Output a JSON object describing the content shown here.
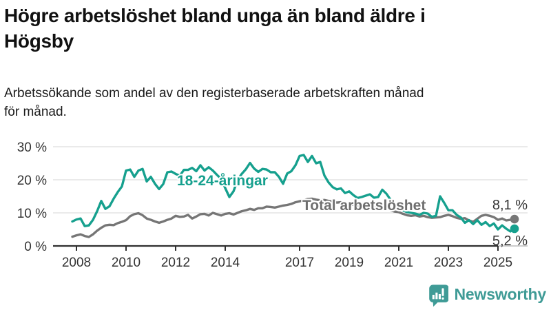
{
  "header": {
    "title_lines": [
      "Högre arbetslöshet bland unga än bland äldre i",
      "Högsby"
    ],
    "subtitle_lines": [
      "Arbetssökande som andel av den registerbaserade arbetskraften månad",
      "för månad."
    ]
  },
  "chart_data": {
    "type": "line",
    "title": "Högre arbetslöshet bland unga än bland äldre i Högsby",
    "subtitle": "Arbetssökande som andel av den registerbaserade arbetskraften månad för månad.",
    "unit": "%",
    "grid": "horizontal",
    "x_start": "2007-11",
    "x_step_months": 2,
    "x_end": "2025-09",
    "x_tick_labels": [
      "2008",
      "2010",
      "2012",
      "2014",
      "2017",
      "2019",
      "2021",
      "2023",
      "2025"
    ],
    "y_tick_labels": [
      "0 %",
      "10 %",
      "20 %",
      "30 %"
    ],
    "y_tick_values": [
      0,
      10,
      20,
      30
    ],
    "ylim": [
      0,
      30
    ],
    "axis_color": "#2f2f2f",
    "grid_color": "#dddddd",
    "tick_label_color": "#333333",
    "series": [
      {
        "name": "Total arbetslöshet",
        "color": "#767676",
        "end_label": "8,1 %",
        "end_value": 8.1,
        "values": [
          2.8,
          3.2,
          3.5,
          3.0,
          2.7,
          3.5,
          4.6,
          5.5,
          6.2,
          6.4,
          6.3,
          6.9,
          7.3,
          7.8,
          9.0,
          9.6,
          9.9,
          9.3,
          8.3,
          7.9,
          7.4,
          7.0,
          7.4,
          7.9,
          8.3,
          9.1,
          8.8,
          8.9,
          9.4,
          8.3,
          8.9,
          9.6,
          9.7,
          9.2,
          10.0,
          9.6,
          9.2,
          9.7,
          9.9,
          9.5,
          10.0,
          10.5,
          10.8,
          11.2,
          10.9,
          11.4,
          11.4,
          11.9,
          11.8,
          11.6,
          11.9,
          12.2,
          12.4,
          12.7,
          13.2,
          13.5,
          13.8,
          14.2,
          14.3,
          14.0,
          13.8,
          13.9,
          13.6,
          13.4,
          13.1,
          13.2,
          12.9,
          12.6,
          12.4,
          12.2,
          12.0,
          11.8,
          11.9,
          11.6,
          11.7,
          12.2,
          12.0,
          10.8,
          10.4,
          10.2,
          9.7,
          9.3,
          9.1,
          9.3,
          8.9,
          9.1,
          8.7,
          8.5,
          8.6,
          8.7,
          9.1,
          9.4,
          9.0,
          8.5,
          8.2,
          8.4,
          7.7,
          7.3,
          8.2,
          9.1,
          9.4,
          9.1,
          8.7,
          7.9,
          8.3,
          7.7,
          7.9,
          8.1
        ]
      },
      {
        "name": "18-24-åringar",
        "color": "#16a08e",
        "end_label": "5,2 %",
        "end_value": 5.2,
        "values": [
          7.4,
          8.0,
          8.3,
          6.0,
          6.2,
          7.9,
          10.5,
          13.6,
          11.2,
          12.0,
          14.3,
          16.3,
          18.0,
          22.8,
          23.1,
          20.9,
          22.8,
          23.3,
          19.5,
          20.9,
          18.8,
          17.2,
          18.7,
          22.3,
          22.5,
          21.8,
          21.2,
          23.0,
          23.0,
          23.6,
          22.6,
          24.4,
          22.8,
          23.8,
          22.8,
          21.5,
          20.3,
          17.5,
          14.8,
          16.5,
          20.0,
          21.8,
          23.2,
          25.1,
          23.4,
          22.4,
          23.3,
          23.1,
          22.3,
          22.3,
          20.9,
          18.8,
          21.9,
          22.6,
          24.4,
          27.2,
          27.5,
          25.4,
          27.2,
          25.0,
          25.4,
          21.3,
          19.2,
          17.8,
          17.1,
          17.4,
          16.0,
          16.5,
          15.4,
          14.5,
          14.8,
          15.2,
          15.6,
          14.6,
          14.8,
          17.0,
          15.8,
          14.0,
          12.5,
          11.5,
          10.8,
          10.2,
          10.0,
          9.8,
          9.4,
          10.0,
          9.8,
          8.8,
          9.1,
          15.0,
          13.0,
          10.8,
          10.8,
          9.4,
          8.6,
          7.0,
          7.8,
          6.6,
          7.8,
          6.4,
          7.2,
          6.0,
          6.8,
          5.0,
          6.2,
          5.2,
          4.4,
          5.2
        ]
      }
    ]
  },
  "footer": {
    "brand": "Newsworthy",
    "brand_color": "#3f9b96",
    "logo_icon": "bar-chart-speech-bubble"
  }
}
